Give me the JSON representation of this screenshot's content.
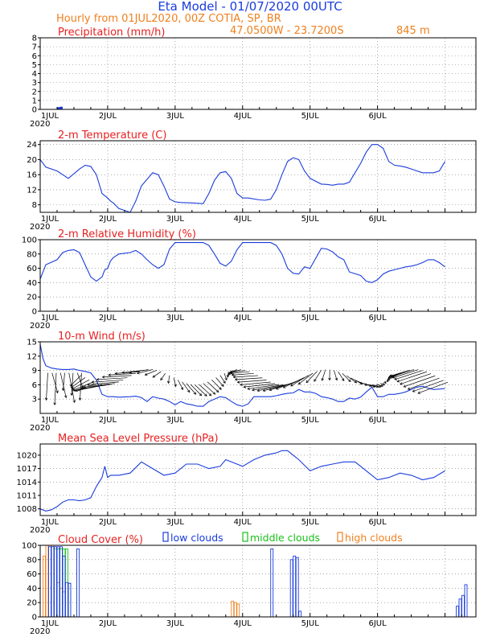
{
  "header": {
    "title": "Eta Model - 01/07/2020 00UTC",
    "subtitle": "Hourly from 01JUL2020, 00Z   COTIA, SP, BR",
    "location": "47.0500W - 23.7200S",
    "elevation": "845  m",
    "title_color": "#1a3cdc",
    "subtitle_color": "#f0801e"
  },
  "day_labels": [
    "1JUL",
    "2JUL",
    "3JUL",
    "4JUL",
    "5JUL",
    "6JUL"
  ],
  "year_label": "2020",
  "colors": {
    "series": "#1a3cdc",
    "panel_title": "#e82020",
    "low": "#1a3cdc",
    "middle": "#18c018",
    "high": "#f0801e",
    "arrow": "#000000"
  },
  "chart_data": [
    {
      "id": "precip",
      "type": "bar",
      "title": "Precipitation (mm/h)",
      "ylim": [
        0,
        8
      ],
      "yticks": [
        0,
        1,
        2,
        3,
        4,
        5,
        6,
        7,
        8
      ],
      "hourly_values": [
        {
          "hour": 6,
          "value": 0.25
        },
        {
          "hour": 7,
          "value": 0.3
        },
        {
          "hour": 65,
          "value": 0.05
        },
        {
          "hour": 67,
          "value": 0.05
        },
        {
          "hour": 68,
          "value": 0.05
        },
        {
          "hour": 70,
          "value": 0.05
        },
        {
          "hour": 72,
          "value": 0.05
        },
        {
          "hour": 75,
          "value": 0.05
        },
        {
          "hour": 77,
          "value": 0.05
        },
        {
          "hour": 79,
          "value": 0.05
        }
      ]
    },
    {
      "id": "temp",
      "type": "line",
      "title": "2-m Temperature (C)",
      "ylim": [
        6,
        25
      ],
      "yticks": [
        8,
        12,
        16,
        20,
        24
      ],
      "x_hours": [
        0,
        2,
        6,
        10,
        14,
        16,
        18,
        20,
        22,
        24,
        25,
        26,
        28,
        32,
        34,
        36,
        40,
        42,
        44,
        46,
        48,
        50,
        54,
        58,
        60,
        62,
        64,
        66,
        68,
        70,
        72,
        74,
        78,
        80,
        82,
        84,
        86,
        88,
        90,
        92,
        94,
        96,
        100,
        102,
        104,
        106,
        108,
        110,
        114,
        116,
        118,
        120,
        122,
        124,
        126,
        128,
        130,
        132,
        134,
        136,
        138,
        140,
        142,
        144
      ],
      "values": [
        20,
        18,
        17,
        15,
        17.5,
        18.5,
        18.2,
        16,
        11,
        9.8,
        9,
        8.5,
        7,
        6,
        9,
        13,
        16.5,
        16,
        13,
        9.5,
        8.8,
        8.6,
        8.5,
        8.3,
        11,
        14.5,
        16.5,
        16.8,
        15,
        11,
        9.8,
        9.8,
        9.3,
        9.2,
        9.5,
        12,
        16,
        19.5,
        20.5,
        20,
        17,
        15,
        13.5,
        13.4,
        13.2,
        13.5,
        13.5,
        14,
        19,
        22,
        24,
        24,
        23,
        19.5,
        18.5,
        18.3,
        18,
        17.5,
        17,
        16.5,
        16.5,
        16.5,
        17,
        19.5
      ]
    },
    {
      "id": "rh",
      "type": "line",
      "title": "2-m Relative Humidity (%)",
      "ylim": [
        0,
        100
      ],
      "yticks": [
        0,
        20,
        40,
        60,
        80,
        100
      ],
      "x_hours": [
        0,
        2,
        6,
        8,
        10,
        12,
        14,
        16,
        18,
        20,
        22,
        23,
        24,
        25,
        26,
        28,
        32,
        34,
        36,
        38,
        40,
        42,
        44,
        46,
        48,
        50,
        54,
        58,
        60,
        62,
        64,
        66,
        68,
        70,
        72,
        76,
        80,
        82,
        84,
        86,
        88,
        90,
        92,
        94,
        96,
        100,
        102,
        104,
        106,
        108,
        110,
        114,
        116,
        118,
        120,
        122,
        124,
        126,
        128,
        130,
        132,
        134,
        136,
        138,
        140,
        142,
        144
      ],
      "values": [
        45,
        65,
        72,
        82,
        85,
        86,
        82,
        65,
        48,
        42,
        48,
        58,
        60,
        70,
        75,
        80,
        82,
        85,
        80,
        72,
        65,
        60,
        65,
        87,
        96,
        96,
        96,
        96,
        92,
        80,
        67,
        63,
        70,
        86,
        96,
        96,
        96,
        96,
        92,
        80,
        60,
        53,
        52,
        62,
        60,
        88,
        87,
        83,
        76,
        72,
        55,
        50,
        42,
        40,
        44,
        52,
        56,
        58,
        60,
        62,
        63,
        65,
        68,
        72,
        72,
        68,
        62
      ]
    },
    {
      "id": "wind",
      "type": "line",
      "title": "10-m Wind (m/s)",
      "ylim": [
        0,
        15
      ],
      "yticks": [
        3,
        6,
        9,
        12,
        15
      ],
      "x_hours": [
        0,
        1,
        2,
        4,
        6,
        8,
        10,
        12,
        14,
        16,
        18,
        20,
        22,
        24,
        26,
        28,
        32,
        34,
        36,
        38,
        40,
        42,
        44,
        46,
        48,
        50,
        52,
        54,
        56,
        58,
        60,
        62,
        64,
        66,
        68,
        70,
        72,
        74,
        76,
        78,
        80,
        82,
        84,
        86,
        88,
        90,
        92,
        94,
        96,
        98,
        100,
        102,
        104,
        106,
        108,
        110,
        112,
        114,
        116,
        118,
        120,
        122,
        124,
        126,
        128,
        130,
        132,
        134,
        136,
        138,
        140,
        142,
        144
      ],
      "values": [
        14.5,
        11.5,
        10,
        9.5,
        9.3,
        9.2,
        9.2,
        9.3,
        9,
        8.8,
        8.5,
        7,
        4,
        3.5,
        3.5,
        3.4,
        3.5,
        3.6,
        3.3,
        2.5,
        3.5,
        3.2,
        3,
        2.5,
        1.8,
        2.5,
        2,
        1.8,
        1.5,
        1.5,
        2.5,
        3,
        3.5,
        3.3,
        2.5,
        1.8,
        1.5,
        2,
        3.5,
        3.5,
        3.5,
        3.5,
        3.7,
        4,
        4.2,
        4.3,
        5,
        4.5,
        4.5,
        4.2,
        3.5,
        3.3,
        3,
        2.5,
        2.5,
        3.2,
        3,
        3.4,
        4.5,
        5.5,
        3.5,
        3.5,
        4,
        4,
        4.2,
        4.5,
        5,
        5.5,
        5.7,
        5.3,
        5,
        5.1,
        5.2
      ],
      "arrows_note": "wind barbs drawn from hourly speed and direction"
    },
    {
      "id": "mslp",
      "type": "line",
      "title": "Mean Sea Level Pressure (hPa)",
      "ylim": [
        1006.5,
        1022.5
      ],
      "yticks": [
        1008,
        1011,
        1014,
        1017,
        1020
      ],
      "x_hours": [
        0,
        2,
        4,
        6,
        8,
        10,
        12,
        14,
        16,
        18,
        20,
        22,
        23,
        24,
        25,
        28,
        32,
        36,
        40,
        44,
        48,
        52,
        56,
        60,
        64,
        66,
        68,
        72,
        76,
        80,
        84,
        86,
        88,
        90,
        92,
        96,
        100,
        104,
        108,
        112,
        114,
        116,
        120,
        124,
        128,
        132,
        136,
        140,
        144
      ],
      "values": [
        1008,
        1007.5,
        1007.8,
        1008.5,
        1009.5,
        1010,
        1010,
        1009.8,
        1010,
        1010.5,
        1013,
        1015,
        1017.5,
        1015,
        1015.5,
        1015.5,
        1016,
        1018.5,
        1017,
        1015.5,
        1016,
        1018,
        1018,
        1017,
        1017.5,
        1019,
        1018.5,
        1017.5,
        1019,
        1020,
        1020.5,
        1021,
        1021,
        1020,
        1019,
        1016.5,
        1017.5,
        1018,
        1018.5,
        1018.5,
        1017.5,
        1016.5,
        1014.5,
        1015,
        1016,
        1015.5,
        1014.5,
        1015,
        1016.5
      ]
    },
    {
      "id": "clouds",
      "type": "bar",
      "title": "Cloud Cover (%)",
      "legend": [
        "low clouds",
        "middle clouds",
        "high clouds"
      ],
      "ylim": [
        0,
        100
      ],
      "yticks": [
        0,
        20,
        40,
        60,
        80,
        100
      ],
      "low_bars": [
        {
          "hour": 3,
          "value": 98
        },
        {
          "hour": 4,
          "value": 98
        },
        {
          "hour": 5,
          "value": 98
        },
        {
          "hour": 6,
          "value": 98
        },
        {
          "hour": 7,
          "value": 98
        },
        {
          "hour": 8,
          "value": 85
        },
        {
          "hour": 9,
          "value": 48
        },
        {
          "hour": 10,
          "value": 47
        },
        {
          "hour": 13,
          "value": 95
        },
        {
          "hour": 82,
          "value": 95
        },
        {
          "hour": 89,
          "value": 80
        },
        {
          "hour": 90,
          "value": 85
        },
        {
          "hour": 91,
          "value": 83
        },
        {
          "hour": 92,
          "value": 8
        },
        {
          "hour": 148,
          "value": 15
        },
        {
          "hour": 149,
          "value": 25
        },
        {
          "hour": 150,
          "value": 30
        },
        {
          "hour": 151,
          "value": 45
        }
      ],
      "middle_bars": [
        {
          "hour": 5,
          "value": 95
        },
        {
          "hour": 6,
          "value": 95
        },
        {
          "hour": 7,
          "value": 95
        },
        {
          "hour": 8,
          "value": 95
        },
        {
          "hour": 9,
          "value": 95
        },
        {
          "hour": 10,
          "value": 47
        }
      ],
      "high_bars": [
        {
          "hour": 1,
          "value": 85
        },
        {
          "hour": 2,
          "value": 100
        },
        {
          "hour": 3,
          "value": 100
        },
        {
          "hour": 4,
          "value": 100
        },
        {
          "hour": 5,
          "value": 98
        },
        {
          "hour": 6,
          "value": 48
        },
        {
          "hour": 7,
          "value": 40
        },
        {
          "hour": 8,
          "value": 35
        },
        {
          "hour": 68,
          "value": 22
        },
        {
          "hour": 69,
          "value": 20
        },
        {
          "hour": 70,
          "value": 18
        }
      ]
    }
  ]
}
